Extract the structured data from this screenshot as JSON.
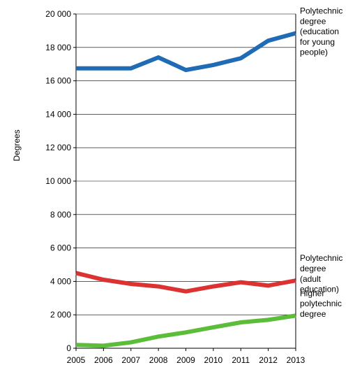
{
  "chart_data": {
    "type": "line",
    "title": "",
    "xlabel": "",
    "ylabel": "Degrees",
    "x": [
      2005,
      2006,
      2007,
      2008,
      2009,
      2010,
      2011,
      2012,
      2013
    ],
    "x_tick_labels": [
      "2005",
      "2006",
      "2007",
      "2008",
      "2009",
      "2010",
      "2011",
      "2012",
      "2013"
    ],
    "ylim": [
      0,
      20000
    ],
    "y_ticks": [
      0,
      2000,
      4000,
      6000,
      8000,
      10000,
      12000,
      14000,
      16000,
      18000,
      20000
    ],
    "y_tick_labels": [
      "0",
      "2 000",
      "4 000",
      "6 000",
      "8 000",
      "10 000",
      "12 000",
      "14 000",
      "16 000",
      "18 000",
      "20 000"
    ],
    "grid": "horizontal",
    "legend_placement": "right, labels at line ends",
    "series": [
      {
        "name": "Polytechnic degree (education for young people)",
        "label_lines": [
          "Polytechnic",
          "degree",
          "(education",
          "for young",
          "people)"
        ],
        "color": "#1f6bb5",
        "values": [
          16750,
          16750,
          16750,
          17400,
          16650,
          16950,
          17350,
          18400,
          18850
        ]
      },
      {
        "name": "Polytechnic degree (adult education)",
        "label_lines": [
          "Polytechnic",
          "degree",
          "(adult",
          "education)"
        ],
        "color": "#dc3232",
        "values": [
          4500,
          4100,
          3850,
          3700,
          3400,
          3700,
          3950,
          3750,
          4050
        ]
      },
      {
        "name": "Higher polytechnic degree",
        "label_lines": [
          "Higher",
          "polytechnic",
          "degree"
        ],
        "color": "#5cbd3b",
        "values": [
          200,
          150,
          350,
          700,
          950,
          1250,
          1550,
          1700,
          1950
        ]
      }
    ]
  }
}
